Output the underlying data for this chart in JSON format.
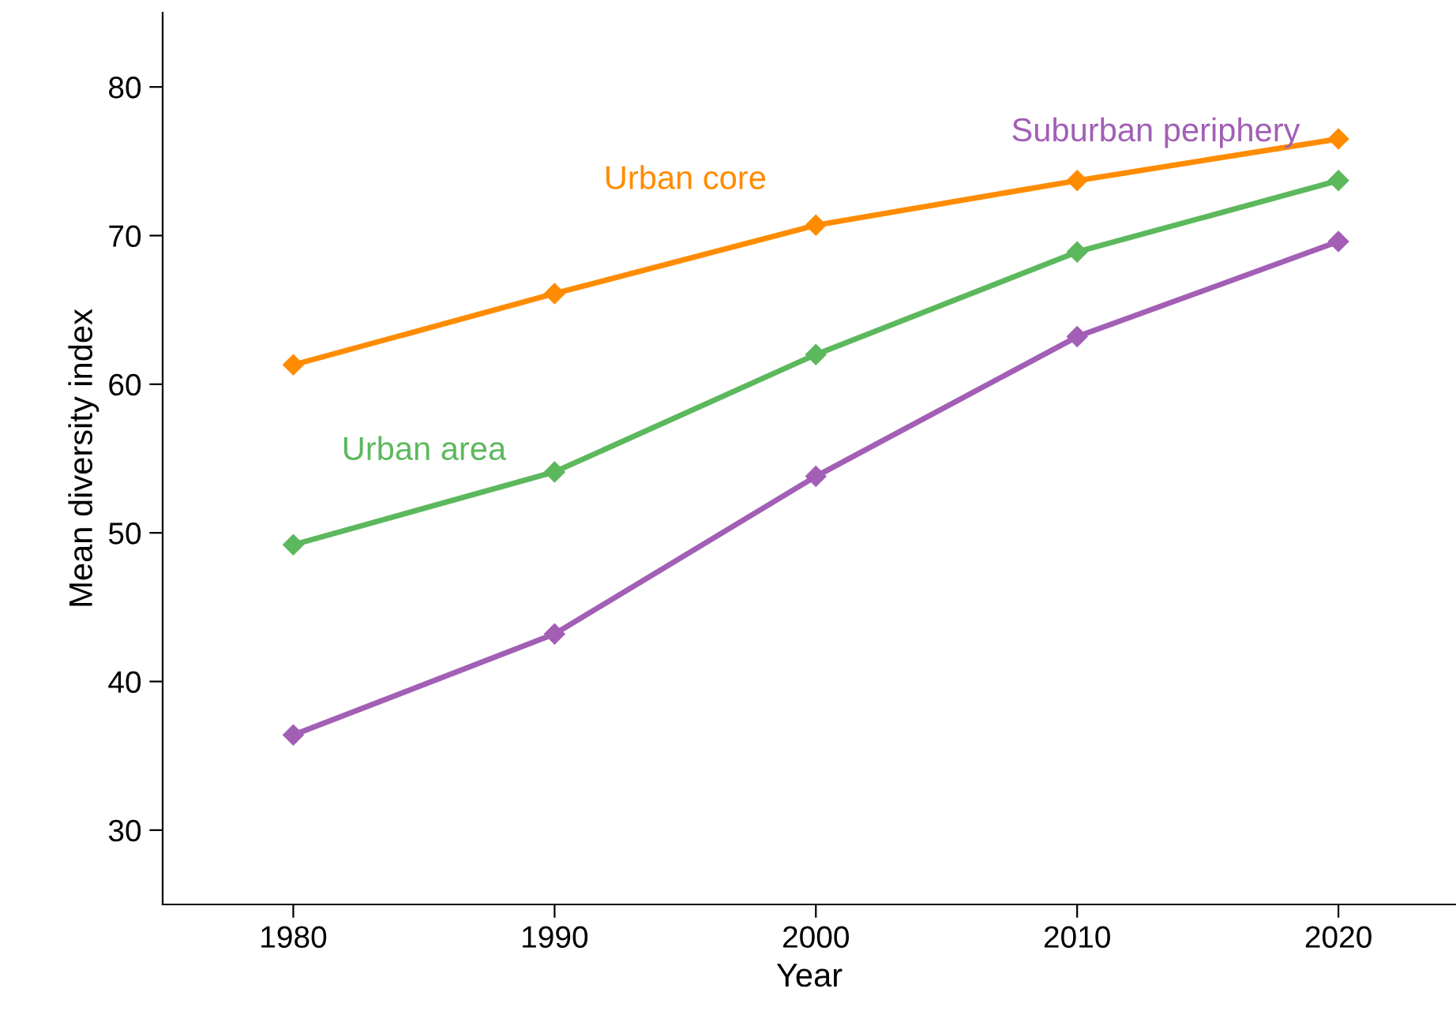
{
  "chart_data": {
    "type": "line",
    "xlabel": "Year",
    "ylabel": "Mean diversity index",
    "x": [
      1980,
      1990,
      2000,
      2010,
      2020
    ],
    "xlim": [
      1975,
      2024.5
    ],
    "ylim": [
      25,
      85
    ],
    "xticks": [
      1980,
      1990,
      2000,
      2010,
      2020
    ],
    "yticks": [
      30,
      40,
      50,
      60,
      70,
      80
    ],
    "marker": "diamond",
    "line_style": "solid",
    "grid": false,
    "legend": false,
    "series": [
      {
        "name": "Urban core",
        "color": "#ff8c00",
        "values": [
          61.3,
          66.1,
          70.7,
          73.7,
          76.5
        ]
      },
      {
        "name": "Urban area",
        "color": "#5cb85c",
        "values": [
          49.2,
          54.1,
          62.0,
          68.9,
          73.7
        ]
      },
      {
        "name": "Suburban periphery",
        "color": "#a25fb5",
        "values": [
          36.4,
          43.2,
          53.8,
          63.2,
          69.6
        ]
      }
    ]
  }
}
